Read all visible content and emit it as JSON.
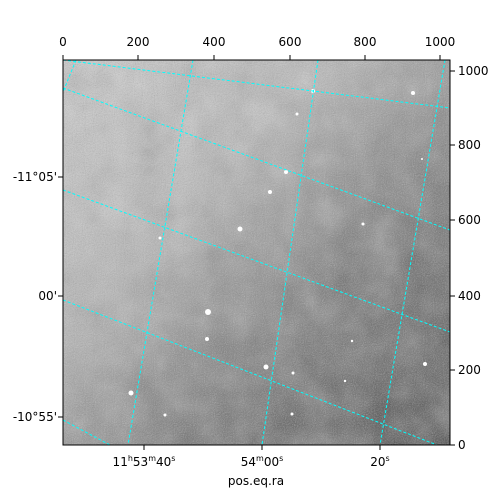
{
  "colors": {
    "grid": "#00ffff",
    "frame": "#000000",
    "sky_light": "#d0d0d0",
    "sky_dark": "#4a4a4a"
  },
  "axes": {
    "top_ticks": [
      "0",
      "200",
      "400",
      "600",
      "800",
      "1000"
    ],
    "right_ticks": [
      "1000",
      "800",
      "600",
      "400",
      "200",
      "0"
    ],
    "left_ticks": [
      "-11°05'",
      "00'",
      "-10°55'"
    ],
    "bottom_ticks": [
      {
        "h": "11",
        "hu": "h",
        "m": "53",
        "mu": "m",
        "s": "40",
        "su": "s"
      },
      {
        "m": "54",
        "mu": "m",
        "s": "00",
        "su": "s"
      },
      {
        "s": "20",
        "su": "s"
      }
    ],
    "xlabel": "pos.eq.ra"
  }
}
